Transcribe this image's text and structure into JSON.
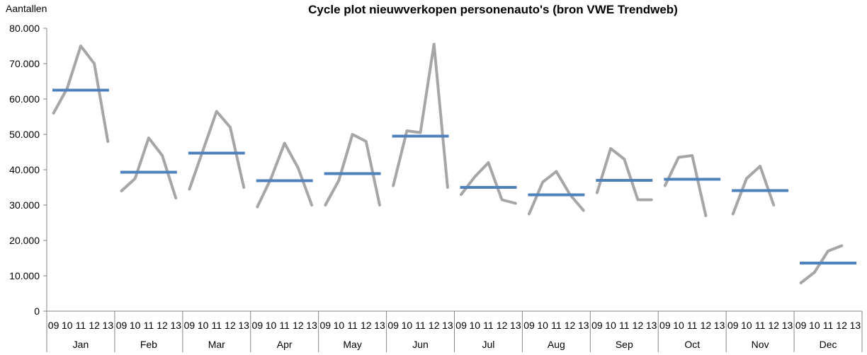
{
  "chart_data": {
    "type": "line",
    "title": "Cycle plot nieuwverkopen personenauto's (bron VWE Trendweb)",
    "ylabel": "Aantallen",
    "ylim": [
      0,
      80000
    ],
    "yticks": [
      0,
      10000,
      20000,
      30000,
      40000,
      50000,
      60000,
      70000,
      80000
    ],
    "ytick_labels": [
      "0",
      "10.000",
      "20.000",
      "30.000",
      "40.000",
      "50.000",
      "60.000",
      "70.000",
      "80.000"
    ],
    "years": [
      "09",
      "10",
      "11",
      "12",
      "13"
    ],
    "grid": false,
    "groups": [
      {
        "month": "Jan",
        "values": [
          56000,
          63000,
          75000,
          70000,
          48000
        ],
        "avg": 62500
      },
      {
        "month": "Feb",
        "values": [
          34000,
          37500,
          49000,
          44000,
          32000
        ],
        "avg": 39300
      },
      {
        "month": "Mar",
        "values": [
          34500,
          45500,
          56500,
          52000,
          35000
        ],
        "avg": 44700
      },
      {
        "month": "Apr",
        "values": [
          29500,
          37500,
          47500,
          40500,
          30000
        ],
        "avg": 36900
      },
      {
        "month": "May",
        "values": [
          30000,
          37000,
          50000,
          48000,
          30000
        ],
        "avg": 38900
      },
      {
        "month": "Jun",
        "values": [
          35500,
          51000,
          50500,
          75500,
          35000
        ],
        "avg": 49500
      },
      {
        "month": "Jul",
        "values": [
          33000,
          38000,
          42000,
          31500,
          30500
        ],
        "avg": 35000
      },
      {
        "month": "Aug",
        "values": [
          27500,
          36500,
          39500,
          33000,
          28500
        ],
        "avg": 32900
      },
      {
        "month": "Sep",
        "values": [
          33500,
          46000,
          43000,
          31500,
          31500
        ],
        "avg": 37000
      },
      {
        "month": "Oct",
        "values": [
          35500,
          43500,
          44000,
          27000
        ],
        "avg": 37300
      },
      {
        "month": "Nov",
        "values": [
          27500,
          37500,
          41000,
          30000
        ],
        "avg": 34100
      },
      {
        "month": "Dec",
        "values": [
          8000,
          11000,
          17000,
          18500
        ],
        "avg": 13600
      }
    ],
    "line_color": "#a6a6a6",
    "avg_color": "#4f81bd"
  }
}
